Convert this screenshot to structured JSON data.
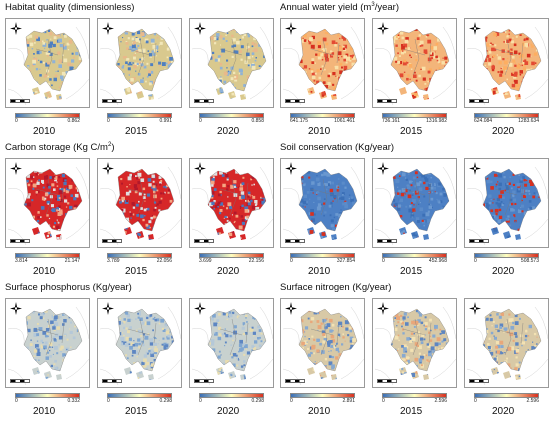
{
  "panels": [
    {
      "id": "habitat-quality",
      "title": "Habitat quality (dimensionless)",
      "style": "hq",
      "legend_colors": [
        "#3b6fb6",
        "#ffffbf",
        "#d7301f"
      ],
      "years": [
        {
          "year": "2010",
          "min": "0",
          "max": "0.862"
        },
        {
          "year": "2015",
          "min": "0",
          "max": "0.991"
        },
        {
          "year": "2020",
          "min": "0",
          "max": "0.858"
        }
      ]
    },
    {
      "id": "annual-water-yield",
      "title_main": "Annual water yield (m",
      "title_sup": "3",
      "title_end": "/year)",
      "style": "wy",
      "legend_colors": [
        "#3b6fb6",
        "#ffffbf",
        "#d7301f"
      ],
      "years": [
        {
          "year": "2010",
          "min": "641.175",
          "max": "1061.461"
        },
        {
          "year": "2015",
          "min": "736.161",
          "max": "1316.982"
        },
        {
          "year": "2020",
          "min": "624.084",
          "max": "1283.634"
        }
      ]
    },
    {
      "id": "carbon-storage",
      "title_main": "Carbon storage (Kg C/m",
      "title_sup": "2",
      "title_end": ")",
      "style": "cs",
      "legend_colors": [
        "#3b6fb6",
        "#ffffbf",
        "#d7301f"
      ],
      "years": [
        {
          "year": "2010",
          "min": "3.814",
          "max": "21.147"
        },
        {
          "year": "2015",
          "min": "3.789",
          "max": "22.056"
        },
        {
          "year": "2020",
          "min": "3.699",
          "max": "22.156"
        }
      ]
    },
    {
      "id": "soil-conservation",
      "title": "Soil conservation (Kg/year)",
      "style": "sc",
      "legend_colors": [
        "#3b6fb6",
        "#ffffbf",
        "#d7301f"
      ],
      "years": [
        {
          "year": "2010",
          "min": "0",
          "max": "327.854"
        },
        {
          "year": "2015",
          "min": "0",
          "max": "452.968"
        },
        {
          "year": "2020",
          "min": "0",
          "max": "508.573"
        }
      ]
    },
    {
      "id": "surface-phosphorus",
      "title": "Surface phosphorus (Kg/year)",
      "style": "sp",
      "legend_colors": [
        "#3b6fb6",
        "#ffffbf",
        "#d7301f"
      ],
      "years": [
        {
          "year": "2010",
          "min": "0",
          "max": "0.332"
        },
        {
          "year": "2015",
          "min": "0",
          "max": "0.298"
        },
        {
          "year": "2020",
          "min": "0",
          "max": "0.298"
        }
      ]
    },
    {
      "id": "surface-nitrogen",
      "title": "Surface nitrogen (Kg/year)",
      "style": "sn",
      "legend_colors": [
        "#3b6fb6",
        "#ffffbf",
        "#d7301f"
      ],
      "years": [
        {
          "year": "2010",
          "min": "0",
          "max": "2.891"
        },
        {
          "year": "2015",
          "min": "0",
          "max": "2.596"
        },
        {
          "year": "2020",
          "min": "0",
          "max": "2.596"
        }
      ]
    }
  ],
  "palettes": {
    "hq": {
      "base": "#d9c98e",
      "spots": [
        "#e9b98a",
        "#8fb2d6",
        "#4f7fc0",
        "#f2e7b8"
      ]
    },
    "wy": {
      "base": "#f3b57a",
      "spots": [
        "#e34a33",
        "#d7301f",
        "#f9e0a8",
        "#fdae61"
      ]
    },
    "cs": {
      "base": "#d62728",
      "spots": [
        "#4a77bd",
        "#f4a582",
        "#b2182b",
        "#e0e0e0"
      ]
    },
    "sc": {
      "base": "#4d80c4",
      "spots": [
        "#3b6fb6",
        "#6a98d0",
        "#5a8bc9",
        "#d7301f"
      ]
    },
    "sp": {
      "base": "#c8d1cf",
      "spots": [
        "#7fa6d1",
        "#e8dcb0",
        "#5d86c2",
        "#b5c8d8"
      ]
    },
    "sn": {
      "base": "#d8c9a6",
      "spots": [
        "#e9a77a",
        "#87a9d0",
        "#f3e2b3",
        "#5e86c1"
      ]
    }
  }
}
